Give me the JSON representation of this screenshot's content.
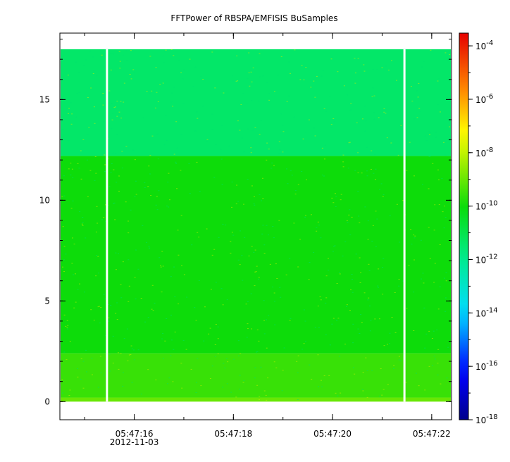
{
  "chart_data": {
    "type": "heatmap",
    "title": "FFTPower of RBSPA/EMFISIS  BuSamples",
    "xlabel": "",
    "ylabel": "",
    "x_axis": {
      "type": "time",
      "date_label": "2012-11-03",
      "tick_labels": [
        "05:47:16",
        "05:47:18",
        "05:47:20",
        "05:47:22"
      ],
      "range": [
        "05:47:14.5",
        "05:47:22.4"
      ],
      "minor_tick_step_seconds": 1
    },
    "y_axis": {
      "tick_labels": [
        "0",
        "5",
        "10",
        "15"
      ],
      "range": [
        -0.9,
        18.3
      ],
      "minor_tick_step": 1
    },
    "colorbar": {
      "scale": "log",
      "range": [
        1e-18,
        0.0003
      ],
      "colormap": "rainbow",
      "tick_labels": [
        {
          "base": "10",
          "exp": "-4"
        },
        {
          "base": "10",
          "exp": "-6"
        },
        {
          "base": "10",
          "exp": "-8"
        },
        {
          "base": "10",
          "exp": "-10"
        },
        {
          "base": "10",
          "exp": "-12"
        },
        {
          "base": "10",
          "exp": "-14"
        },
        {
          "base": "10",
          "exp": "-16"
        },
        {
          "base": "10",
          "exp": "-18"
        }
      ]
    },
    "data_extent": {
      "freq_max": 17.5,
      "freq_min": 0.0
    },
    "gaps": [
      "05:47:15.45",
      "05:47:21.45"
    ],
    "power_bands": [
      {
        "freq_from": 0.0,
        "freq_to": 0.2,
        "level": 1e-09
      },
      {
        "freq_from": 0.2,
        "freq_to": 2.4,
        "level": 3e-10
      },
      {
        "freq_from": 2.4,
        "freq_to": 12.2,
        "level": 1e-10
      },
      {
        "freq_from": 12.2,
        "freq_to": 17.5,
        "level": 4e-12
      }
    ],
    "colors": {
      "background": "#ffffff",
      "axis": "#000000"
    }
  }
}
